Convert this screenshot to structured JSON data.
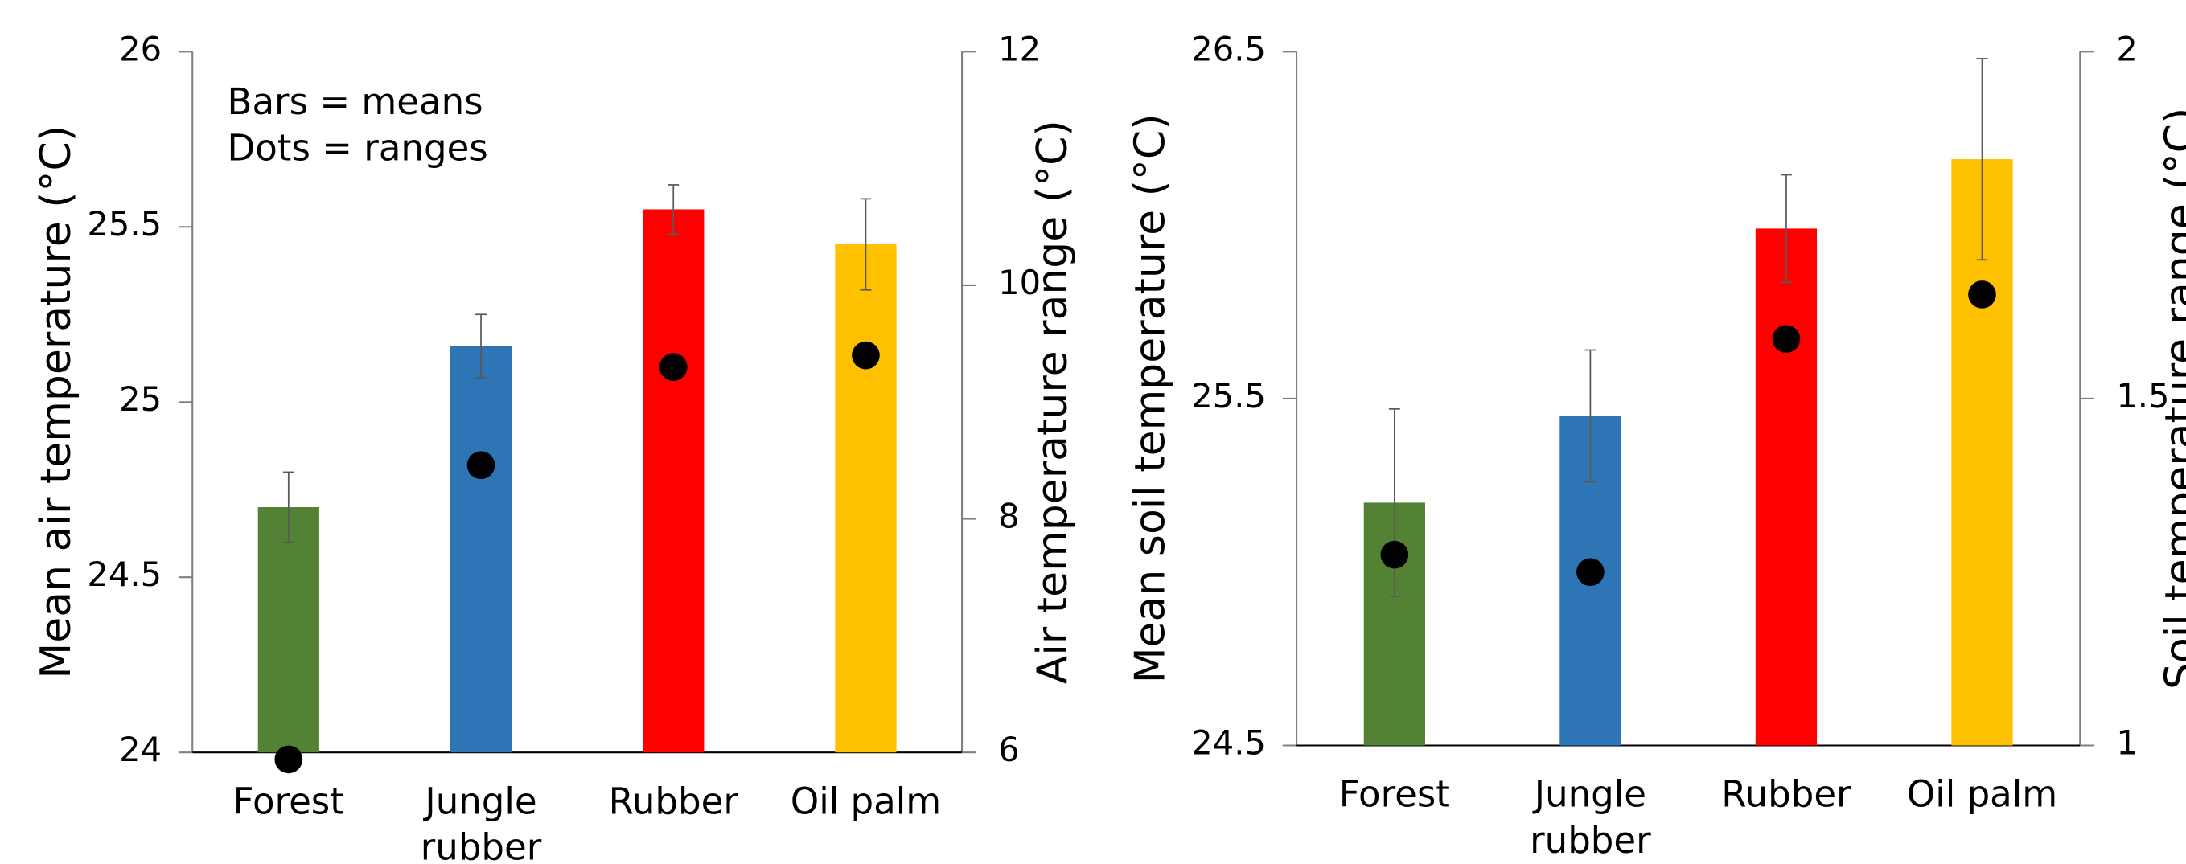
{
  "chart_data": [
    {
      "type": "bar",
      "categories": [
        "Forest",
        "Jungle rubber",
        "Rubber",
        "Oil palm"
      ],
      "y_label": "Mean air temperature (°C)",
      "y2_label": "Air temperature range (°C)",
      "annotations": [
        "Bars = means",
        "Dots = ranges"
      ],
      "ylim": [
        24,
        26
      ],
      "yticks": [
        24,
        24.5,
        25,
        25.5,
        26
      ],
      "y2lim": [
        6,
        12
      ],
      "y2ticks": [
        6,
        8,
        10,
        12
      ],
      "series": [
        {
          "type": "bar",
          "colors": [
            "#548235",
            "#2e75b6",
            "#ff0000",
            "#ffc000"
          ],
          "values": [
            24.7,
            25.16,
            25.55,
            25.45
          ],
          "errors": [
            0.1,
            0.09,
            0.07,
            0.13
          ]
        },
        {
          "type": "scatter",
          "axis": "y2",
          "color": "#000000",
          "values": [
            5.94,
            8.46,
            9.3,
            9.4
          ]
        }
      ]
    },
    {
      "type": "bar",
      "categories": [
        "Forest",
        "Jungle rubber",
        "Rubber",
        "Oil palm"
      ],
      "y_label": "Mean soil temperature (°C)",
      "y2_label": "Soil temperature range (°C)",
      "ylim": [
        24.5,
        26.5
      ],
      "yticks": [
        24.5,
        25.5,
        26.5
      ],
      "y2lim": [
        1,
        2
      ],
      "y2ticks": [
        1,
        1.5,
        2
      ],
      "series": [
        {
          "type": "bar",
          "colors": [
            "#548235",
            "#2e75b6",
            "#ff0000",
            "#ffc000"
          ],
          "values": [
            25.2,
            25.45,
            25.99,
            26.19
          ],
          "errors": [
            0.27,
            0.19,
            0.155,
            0.29
          ]
        },
        {
          "type": "scatter",
          "axis": "y2",
          "color": "#000000",
          "values": [
            1.275,
            1.25,
            1.586,
            1.65
          ]
        }
      ]
    }
  ]
}
